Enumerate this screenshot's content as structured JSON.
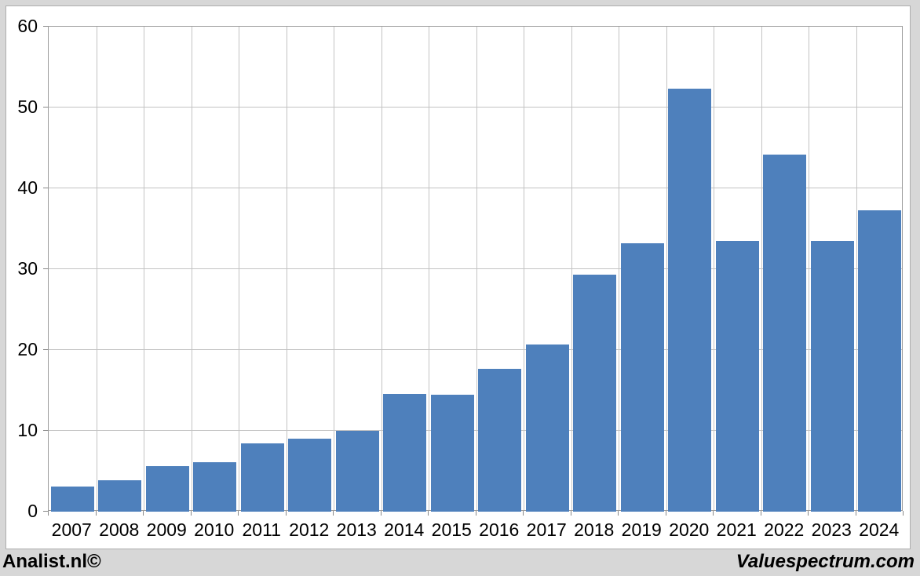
{
  "chart_data": {
    "type": "bar",
    "title": "",
    "xlabel": "",
    "ylabel": "",
    "categories": [
      "2007",
      "2008",
      "2009",
      "2010",
      "2011",
      "2012",
      "2013",
      "2014",
      "2015",
      "2016",
      "2017",
      "2018",
      "2019",
      "2020",
      "2021",
      "2022",
      "2023",
      "2024"
    ],
    "values": [
      3.1,
      3.9,
      5.6,
      6.1,
      8.4,
      9.0,
      10.0,
      14.6,
      14.5,
      17.7,
      20.7,
      29.3,
      33.2,
      52.3,
      33.5,
      44.2,
      33.5,
      37.3
    ],
    "ylim": [
      0,
      60
    ],
    "yticks": [
      0,
      10,
      20,
      30,
      40,
      50,
      60
    ],
    "grid": true,
    "legend": false,
    "bar_color": "#4e80bc",
    "gridline_color": "#c3c3c3",
    "axis_color": "#898989"
  },
  "footer": {
    "left_text": "Analist.nl©",
    "right_text": "Valuespectrum.com"
  },
  "colors": {
    "page_background": "#d7d7d7",
    "chart_background": "#ffffff",
    "chart_border": "#aeaeae",
    "plot_border": "#9b9b9b"
  }
}
